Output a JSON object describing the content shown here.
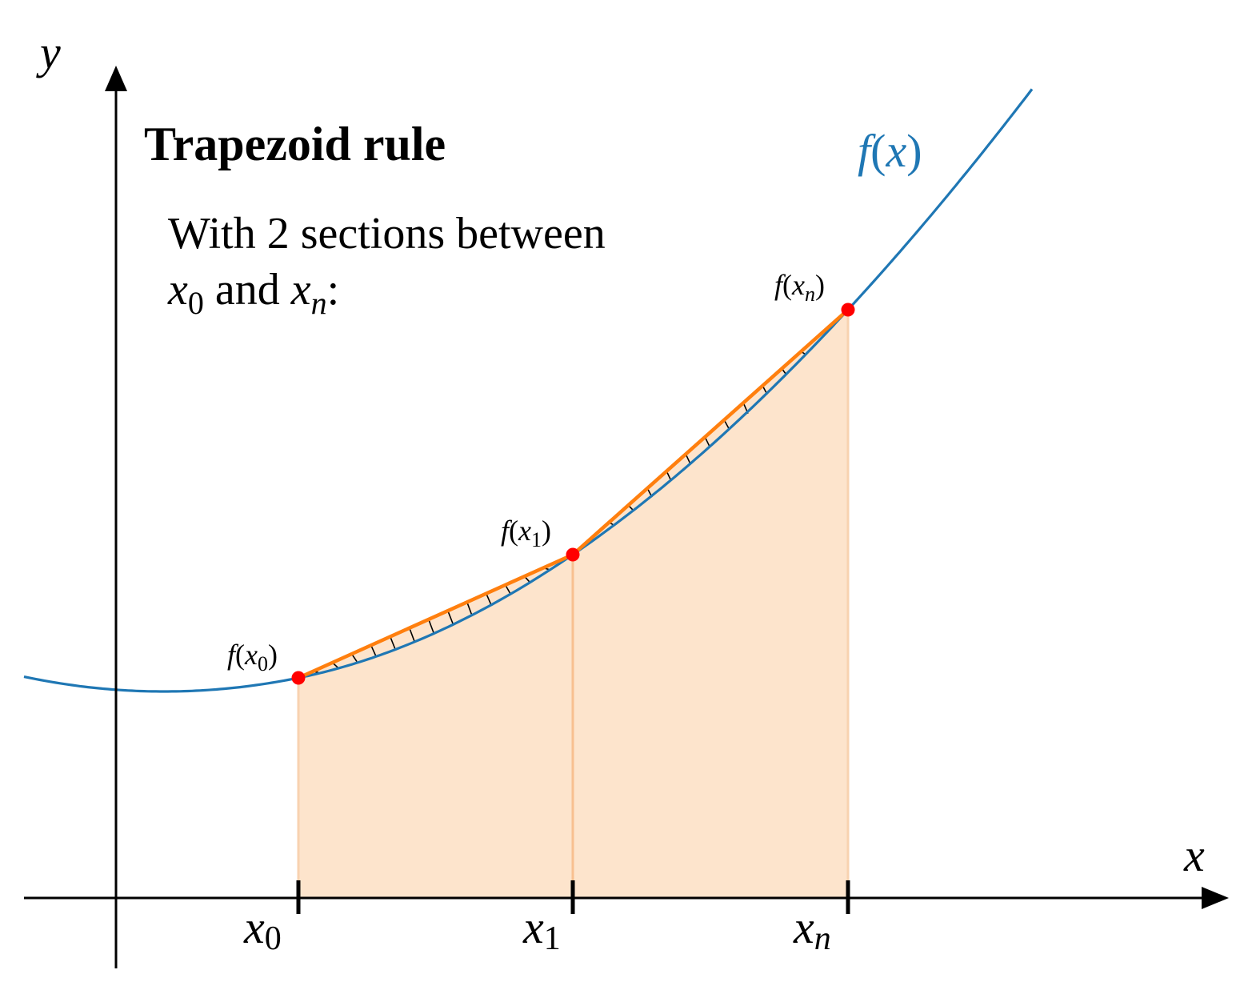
{
  "title": "Trapezoid rule",
  "description": {
    "line1": "With 2 sections between",
    "line2": {
      "a": "x",
      "a_sub": "0",
      "mid": " and ",
      "b": "x",
      "b_sub": "n",
      "end": ":"
    }
  },
  "axes": {
    "x_label": "x",
    "y_label": "y"
  },
  "curve": {
    "label_f": "f",
    "label_open": "(",
    "label_var": "x",
    "label_close": ")",
    "color": "#1f77b4"
  },
  "ticks": [
    {
      "var": "x",
      "sub": "0"
    },
    {
      "var": "x",
      "sub": "1"
    },
    {
      "var": "x",
      "sub": "n"
    }
  ],
  "points": [
    {
      "f": "f",
      "open": "(",
      "var": "x",
      "sub": "0",
      "close": ")"
    },
    {
      "f": "f",
      "open": "(",
      "var": "x",
      "sub": "1",
      "close": ")"
    },
    {
      "f": "f",
      "open": "(",
      "var": "x",
      "sub": "n",
      "close": ")"
    }
  ],
  "colors": {
    "axis": "#000000",
    "fill": "#fde4cc",
    "fill_edge": "#f8c7a0",
    "trapezoid_line": "#ff7f0e",
    "point": "#ff0000",
    "curve": "#1f77b4"
  }
}
